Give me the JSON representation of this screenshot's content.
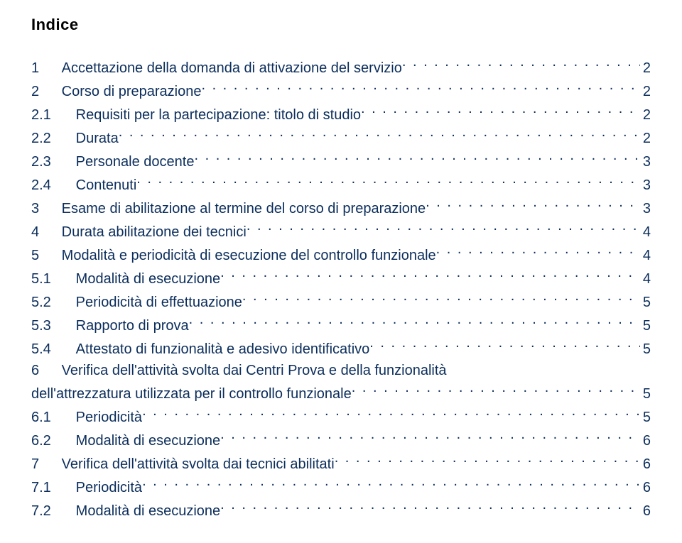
{
  "title": "Indice",
  "colors": {
    "title": "#000000",
    "link": "#0b2d5b",
    "background": "#ffffff"
  },
  "typography": {
    "title_fontsize": 22,
    "title_weight": "bold",
    "toc_fontsize": 20,
    "font_family": "Verdana, Geneva, sans-serif",
    "line_height": 1.5
  },
  "toc": [
    {
      "num": "1",
      "text": "Accettazione della domanda di attivazione del servizio",
      "page": "2",
      "indent": 0
    },
    {
      "num": "2",
      "text": "Corso di preparazione",
      "page": "2",
      "indent": 0
    },
    {
      "num": "2.1",
      "text": "Requisiti per la partecipazione: titolo di studio",
      "page": "2",
      "indent": 1
    },
    {
      "num": "2.2",
      "text": "Durata",
      "page": "2",
      "indent": 1
    },
    {
      "num": "2.3",
      "text": "Personale docente",
      "page": "3",
      "indent": 1
    },
    {
      "num": "2.4",
      "text": "Contenuti",
      "page": "3",
      "indent": 1
    },
    {
      "num": "3",
      "text": "Esame di abilitazione al termine del corso di preparazione",
      "page": "3",
      "indent": 0
    },
    {
      "num": "4",
      "text": "Durata abilitazione dei tecnici",
      "page": "4",
      "indent": 0
    },
    {
      "num": "5",
      "text": "Modalità e periodicità di esecuzione del controllo funzionale",
      "page": "4",
      "indent": 0
    },
    {
      "num": "5.1",
      "text": "Modalità di esecuzione",
      "page": "4",
      "indent": 1
    },
    {
      "num": "5.2",
      "text": "Periodicità di effettuazione",
      "page": "5",
      "indent": 1
    },
    {
      "num": "5.3",
      "text": "Rapporto di prova",
      "page": "5",
      "indent": 1
    },
    {
      "num": "5.4",
      "text": "Attestato di funzionalità e adesivo identificativo",
      "page": "5",
      "indent": 1
    },
    {
      "num": "6",
      "text": "Verifica dell'attività svolta dai Centri Prova e della funzionalità",
      "text2": "dell'attrezzatura utilizzata per il controllo funzionale",
      "page": "5",
      "indent": 0,
      "wrap": true
    },
    {
      "num": "6.1",
      "text": "Periodicità",
      "page": "5",
      "indent": 1
    },
    {
      "num": "6.2",
      "text": "Modalità di esecuzione",
      "page": "6",
      "indent": 1
    },
    {
      "num": "7",
      "text": "Verifica dell'attività svolta dai tecnici abilitati",
      "page": "6",
      "indent": 0
    },
    {
      "num": "7.1",
      "text": "Periodicità",
      "page": "6",
      "indent": 1
    },
    {
      "num": "7.2",
      "text": "Modalità di esecuzione",
      "page": "6",
      "indent": 1
    }
  ]
}
